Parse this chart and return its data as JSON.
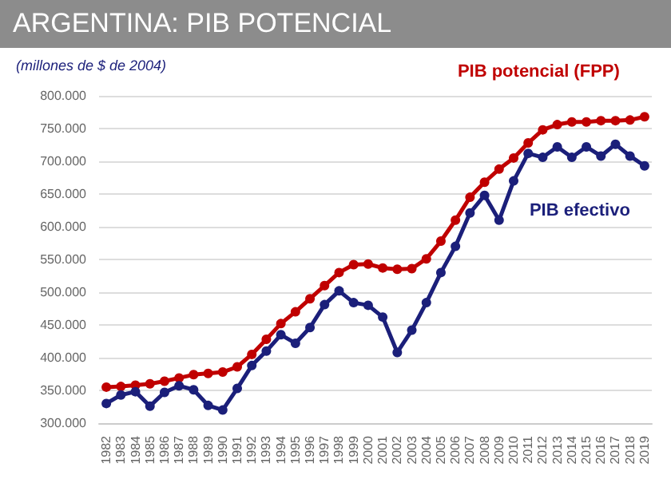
{
  "chart_data": {
    "type": "line",
    "title": "ARGENTINA: PIB POTENCIAL",
    "ylabel": "(millones de $ de 2004)",
    "categories": [
      "1982",
      "1983",
      "1984",
      "1985",
      "1986",
      "1987",
      "1988",
      "1989",
      "1990",
      "1991",
      "1992",
      "1993",
      "1994",
      "1995",
      "1996",
      "1997",
      "1998",
      "1999",
      "2000",
      "2001",
      "2002",
      "2003",
      "2004",
      "2005",
      "2006",
      "2007",
      "2008",
      "2009",
      "2010",
      "2011",
      "2012",
      "2013",
      "2014",
      "2015",
      "2016",
      "2017",
      "2018",
      "2019"
    ],
    "series": [
      {
        "name": "PIB potencial (FPP)",
        "color": "#c00000",
        "values": [
          355000,
          356000,
          358000,
          360000,
          364000,
          369000,
          374000,
          376000,
          378000,
          386000,
          405000,
          428000,
          452000,
          470000,
          490000,
          510000,
          530000,
          542000,
          543000,
          537000,
          535000,
          536000,
          551000,
          578000,
          610000,
          645000,
          668000,
          688000,
          705000,
          728000,
          748000,
          756000,
          760000,
          760000,
          762000,
          762000,
          763000,
          768000
        ]
      },
      {
        "name": "PIB efectivo",
        "color": "#1b1f7a",
        "values": [
          330000,
          343000,
          348000,
          326000,
          347000,
          357000,
          351000,
          327000,
          320000,
          353000,
          388000,
          410000,
          435000,
          422000,
          446000,
          481000,
          502000,
          484000,
          480000,
          462000,
          408000,
          442000,
          484000,
          530000,
          570000,
          621000,
          648000,
          610000,
          670000,
          712000,
          706000,
          722000,
          706000,
          722000,
          708000,
          726000,
          708000,
          693000
        ]
      }
    ],
    "ylim": [
      300000,
      800000
    ],
    "yticks": [
      {
        "value": 300000,
        "label": "300.000"
      },
      {
        "value": 350000,
        "label": "350.000"
      },
      {
        "value": 400000,
        "label": "400.000"
      },
      {
        "value": 450000,
        "label": "450.000"
      },
      {
        "value": 500000,
        "label": "500.000"
      },
      {
        "value": 550000,
        "label": "550.000"
      },
      {
        "value": 600000,
        "label": "600.000"
      },
      {
        "value": 650000,
        "label": "650.000"
      },
      {
        "value": 700000,
        "label": "700.000"
      },
      {
        "value": 750000,
        "label": "750.000"
      },
      {
        "value": 800000,
        "label": "800.000"
      }
    ],
    "grid": "y",
    "legend": false,
    "marker": "circle",
    "line_style": "solid"
  }
}
